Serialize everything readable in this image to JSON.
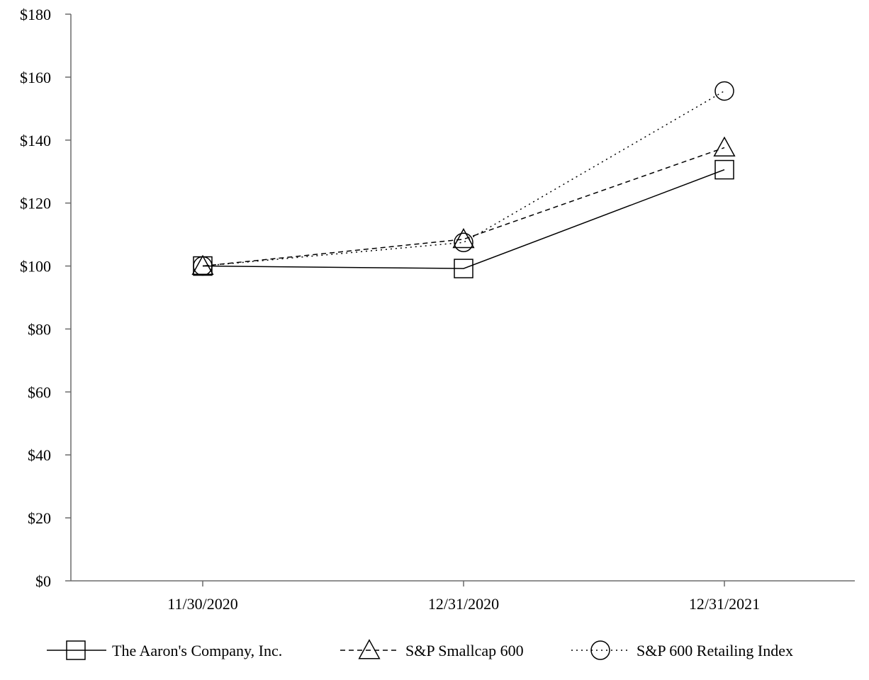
{
  "chart_data": {
    "type": "line",
    "title": "",
    "xlabel": "",
    "ylabel": "",
    "categories": [
      "11/30/2020",
      "12/31/2020",
      "12/31/2021"
    ],
    "ylim": [
      0,
      180
    ],
    "y_ticks": [
      0,
      20,
      40,
      60,
      80,
      100,
      120,
      140,
      160,
      180
    ],
    "y_tick_labels": [
      "$0",
      "$20",
      "$40",
      "$60",
      "$80",
      "$100",
      "$120",
      "$140",
      "$160",
      "$180"
    ],
    "grid": false,
    "legend_position": "bottom",
    "series": [
      {
        "name": "The Aaron's Company, Inc.",
        "values": [
          100.0,
          99.2,
          130.6
        ],
        "marker": "square",
        "line_style": "solid"
      },
      {
        "name": "S&P Smallcap 600",
        "values": [
          100.0,
          108.5,
          137.6
        ],
        "marker": "triangle",
        "line_style": "dashed"
      },
      {
        "name": "S&P 600 Retailing Index",
        "values": [
          100.0,
          107.5,
          155.6
        ],
        "marker": "circle",
        "line_style": "dotted"
      }
    ]
  }
}
